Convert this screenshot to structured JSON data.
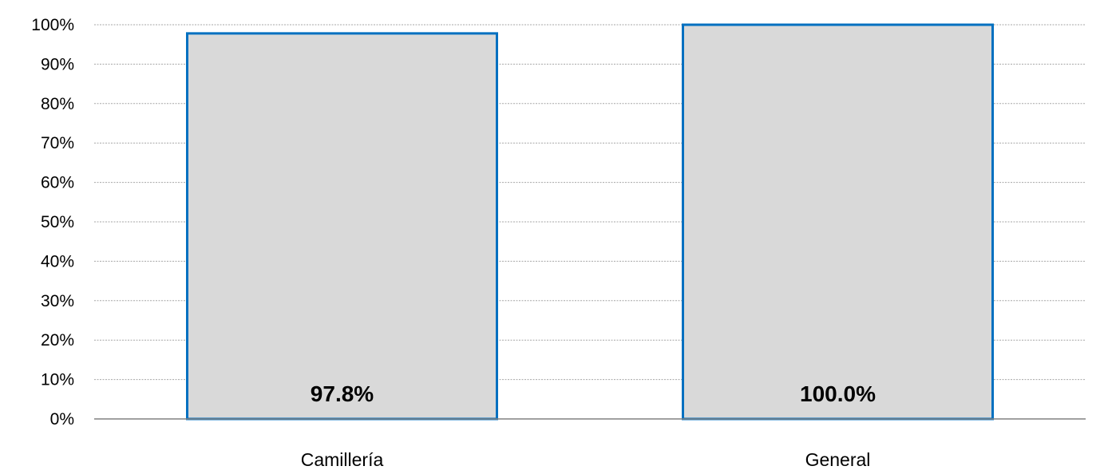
{
  "chart_data": {
    "type": "bar",
    "categories": [
      "Camillería",
      "General"
    ],
    "values": [
      97.8,
      100.0
    ],
    "data_labels": [
      "97.8%",
      "100.0%"
    ],
    "y_ticks": [
      "0%",
      "10%",
      "20%",
      "30%",
      "40%",
      "50%",
      "60%",
      "70%",
      "80%",
      "90%",
      "100%"
    ],
    "ylim": [
      0,
      100
    ],
    "grid": true,
    "grid_style": "dotted",
    "legend": false,
    "colors": {
      "bar_fill": "#d9d9d9",
      "bar_outline": "#0070c0",
      "grid": "#a6a6a6",
      "axis": "#808080",
      "text": "#000000"
    }
  }
}
